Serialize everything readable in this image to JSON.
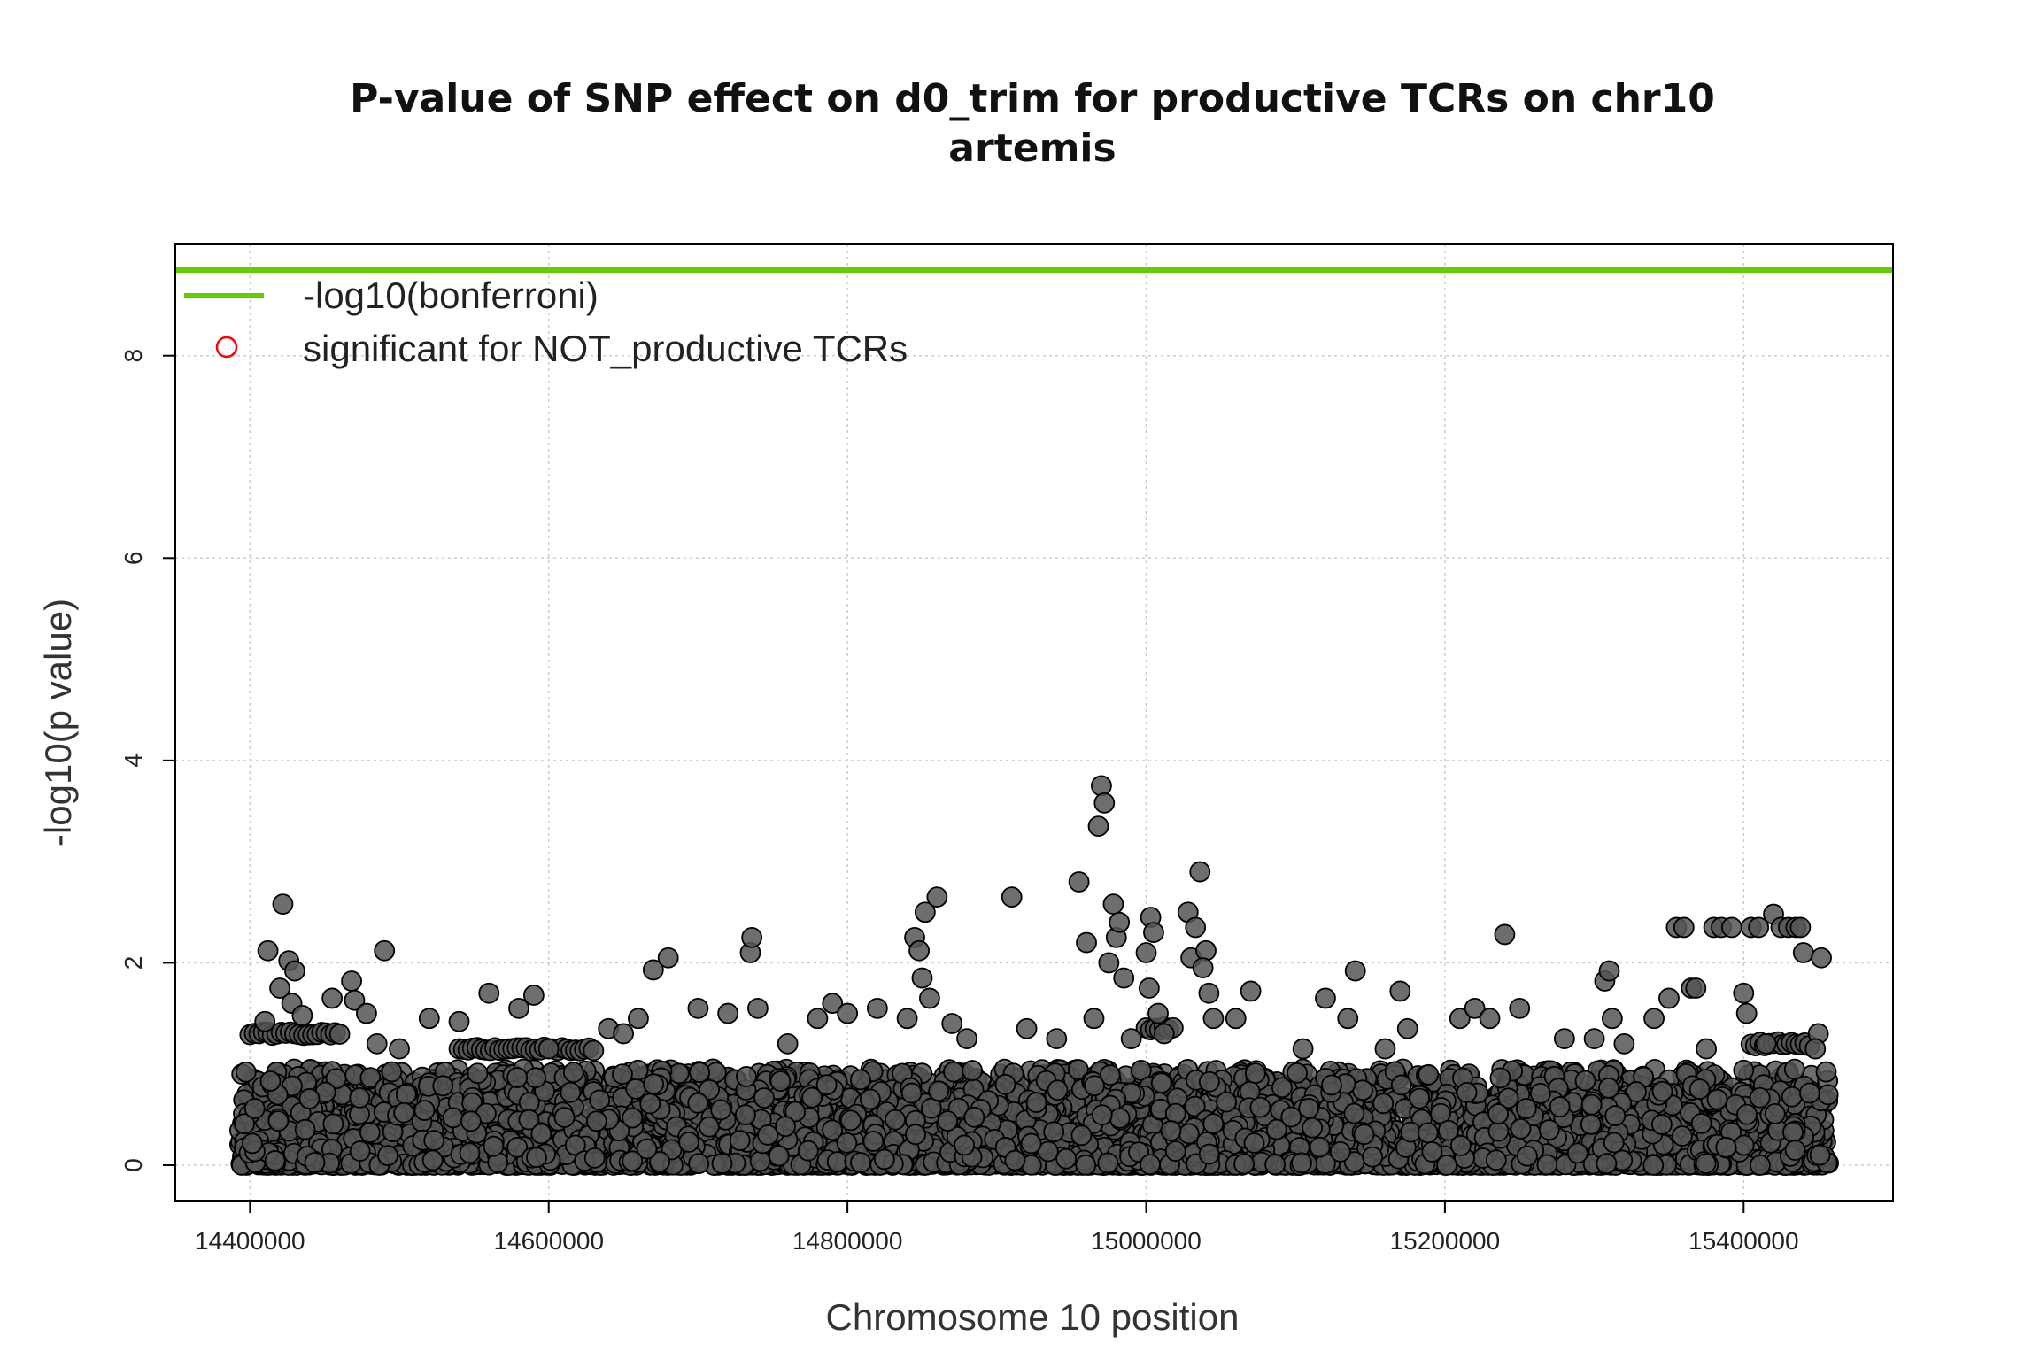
{
  "chart_data": {
    "type": "scatter",
    "title": "P-value of SNP effect on d0_trim for productive TCRs on chr10",
    "subtitle": "artemis",
    "xlabel": "Chromosome 10 position",
    "ylabel": "-log10(p value)",
    "xlim": [
      14350000,
      15500000
    ],
    "ylim": [
      -0.35,
      9.1
    ],
    "x_ticks": [
      "14400000",
      "14600000",
      "14800000",
      "15000000",
      "15200000",
      "15400000"
    ],
    "x_tick_values": [
      14400000,
      14600000,
      14800000,
      15000000,
      15200000,
      15400000
    ],
    "y_ticks": [
      "0",
      "2",
      "4",
      "6",
      "8"
    ],
    "y_tick_values": [
      0,
      2,
      4,
      6,
      8
    ],
    "grid": true,
    "legend": {
      "placement": "top-left",
      "entries": [
        {
          "label": "-log10(bonferroni)",
          "kind": "line",
          "color": "#66cc00"
        },
        {
          "label": "significant for NOT_productive TCRs",
          "kind": "open-circle",
          "color": "#ff0000"
        }
      ]
    },
    "bonferroni_threshold": 8.85,
    "point_color": "#555555",
    "point_edge_color": "#000000",
    "series": [
      {
        "name": "SNPs",
        "background_band": {
          "x_range": [
            14393000,
            15457000
          ],
          "y_range": [
            0,
            0.95
          ],
          "count": 5000
        },
        "points": [
          [
            14422000,
            2.58
          ],
          [
            14412000,
            2.12
          ],
          [
            14426000,
            2.02
          ],
          [
            14430000,
            1.92
          ],
          [
            14420000,
            1.75
          ],
          [
            14428000,
            1.6
          ],
          [
            14435000,
            1.48
          ],
          [
            14410000,
            1.42
          ],
          [
            14455000,
            1.65
          ],
          [
            14468000,
            1.82
          ],
          [
            14470000,
            1.63
          ],
          [
            14478000,
            1.5
          ],
          [
            14490000,
            2.12
          ],
          [
            14485000,
            1.2
          ],
          [
            14500000,
            1.15
          ],
          [
            14540000,
            1.42
          ],
          [
            14520000,
            1.45
          ],
          [
            14560000,
            1.7
          ],
          [
            14580000,
            1.55
          ],
          [
            14590000,
            1.68
          ],
          [
            14600000,
            1.15
          ],
          [
            14640000,
            1.35
          ],
          [
            14650000,
            1.3
          ],
          [
            14660000,
            1.45
          ],
          [
            14670000,
            1.93
          ],
          [
            14680000,
            2.05
          ],
          [
            14700000,
            1.55
          ],
          [
            14720000,
            1.5
          ],
          [
            14735000,
            2.1
          ],
          [
            14736000,
            2.25
          ],
          [
            14740000,
            1.55
          ],
          [
            14760000,
            1.2
          ],
          [
            14780000,
            1.45
          ],
          [
            14790000,
            1.6
          ],
          [
            14800000,
            1.5
          ],
          [
            14820000,
            1.55
          ],
          [
            14840000,
            1.45
          ],
          [
            14845000,
            2.25
          ],
          [
            14848000,
            2.12
          ],
          [
            14852000,
            2.5
          ],
          [
            14860000,
            2.65
          ],
          [
            14850000,
            1.85
          ],
          [
            14855000,
            1.65
          ],
          [
            14870000,
            1.4
          ],
          [
            14880000,
            1.25
          ],
          [
            14910000,
            2.65
          ],
          [
            14920000,
            1.35
          ],
          [
            14940000,
            1.25
          ],
          [
            14955000,
            2.8
          ],
          [
            14960000,
            2.2
          ],
          [
            14965000,
            1.45
          ],
          [
            14968000,
            3.35
          ],
          [
            14970000,
            3.75
          ],
          [
            14972000,
            3.58
          ],
          [
            14975000,
            2.0
          ],
          [
            14978000,
            2.58
          ],
          [
            14980000,
            2.25
          ],
          [
            14982000,
            2.4
          ],
          [
            14985000,
            1.85
          ],
          [
            14990000,
            1.25
          ],
          [
            15000000,
            2.1
          ],
          [
            15003000,
            2.45
          ],
          [
            15005000,
            2.3
          ],
          [
            15002000,
            1.75
          ],
          [
            15008000,
            1.5
          ],
          [
            15012000,
            1.3
          ],
          [
            15028000,
            2.5
          ],
          [
            15030000,
            2.05
          ],
          [
            15033000,
            2.35
          ],
          [
            15036000,
            2.9
          ],
          [
            15040000,
            2.12
          ],
          [
            15038000,
            1.95
          ],
          [
            15042000,
            1.7
          ],
          [
            15045000,
            1.45
          ],
          [
            15060000,
            1.45
          ],
          [
            15070000,
            1.72
          ],
          [
            15105000,
            1.15
          ],
          [
            15120000,
            1.65
          ],
          [
            15135000,
            1.45
          ],
          [
            15140000,
            1.92
          ],
          [
            15160000,
            1.15
          ],
          [
            15170000,
            1.72
          ],
          [
            15175000,
            1.35
          ],
          [
            15210000,
            1.45
          ],
          [
            15220000,
            1.55
          ],
          [
            15230000,
            1.45
          ],
          [
            15240000,
            2.28
          ],
          [
            15250000,
            1.55
          ],
          [
            15280000,
            1.25
          ],
          [
            15300000,
            1.25
          ],
          [
            15307000,
            1.82
          ],
          [
            15310000,
            1.92
          ],
          [
            15312000,
            1.45
          ],
          [
            15320000,
            1.2
          ],
          [
            15340000,
            1.45
          ],
          [
            15350000,
            1.65
          ],
          [
            15355000,
            2.35
          ],
          [
            15360000,
            2.35
          ],
          [
            15365000,
            1.75
          ],
          [
            15368000,
            1.75
          ],
          [
            15375000,
            1.15
          ],
          [
            15380000,
            2.35
          ],
          [
            15385000,
            2.35
          ],
          [
            15392000,
            2.35
          ],
          [
            15400000,
            1.7
          ],
          [
            15402000,
            1.5
          ],
          [
            15405000,
            2.35
          ],
          [
            15410000,
            2.35
          ],
          [
            15415000,
            1.2
          ],
          [
            15420000,
            2.48
          ],
          [
            15425000,
            2.35
          ],
          [
            15430000,
            2.35
          ],
          [
            15435000,
            2.35
          ],
          [
            15438000,
            2.35
          ],
          [
            15440000,
            2.1
          ],
          [
            15450000,
            1.3
          ],
          [
            15452000,
            2.05
          ],
          [
            15448000,
            1.15
          ]
        ],
        "plateaus": [
          {
            "x_range": [
              14540000,
              14630000
            ],
            "y": 1.15
          },
          {
            "x_range": [
              14400000,
              14460000
            ],
            "y": 1.3
          },
          {
            "x_range": [
              15405000,
              15445000
            ],
            "y": 1.2
          },
          {
            "x_range": [
              15000000,
              15020000
            ],
            "y": 1.35
          }
        ]
      }
    ]
  }
}
